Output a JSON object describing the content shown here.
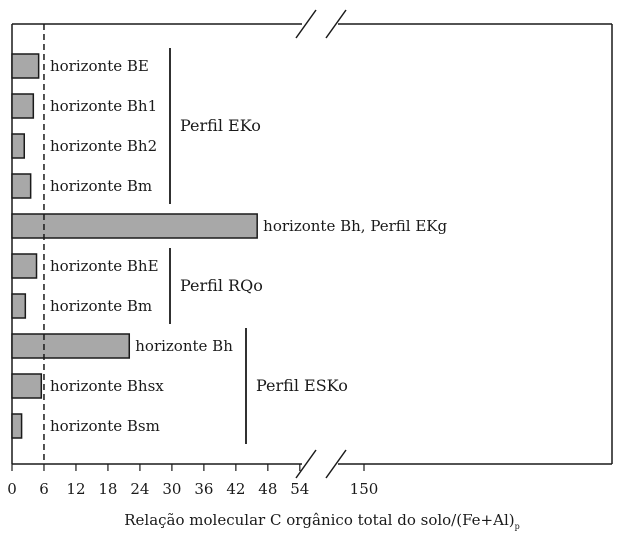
{
  "chart_data": {
    "type": "bar",
    "orientation": "horizontal",
    "xlabel": "Relação molecular C orgânico total do solo/(Fe+Al)",
    "xlabel_subscript": "p",
    "x_ticks": [
      "0",
      "6",
      "12",
      "18",
      "24",
      "30",
      "36",
      "42",
      "48",
      "54",
      "150"
    ],
    "axis_break": "between 48 and 150",
    "reference_line": {
      "x": 6,
      "style": "dashed"
    },
    "bars": [
      {
        "label": "horizonte BE",
        "value": 5
      },
      {
        "label": "horizonte Bh1",
        "value": 4
      },
      {
        "label": "horizonte Bh2",
        "value": 2.3
      },
      {
        "label": "horizonte Bm",
        "value": 3.5
      },
      {
        "label": "horizonte Bh, Perfil EKg",
        "value": 46
      },
      {
        "label": "horizonte BhE",
        "value": 4.6
      },
      {
        "label": "horizonte Bm",
        "value": 2.5
      },
      {
        "label": "horizonte Bh",
        "value": 22
      },
      {
        "label": "horizonte Bhsx",
        "value": 5.5
      },
      {
        "label": "horizonte Bsm",
        "value": 1.8
      }
    ],
    "groups": [
      {
        "label": "Perfil EKo",
        "bars": [
          0,
          3
        ]
      },
      {
        "label": "Perfil RQo",
        "bars": [
          5,
          6
        ]
      },
      {
        "label": "Perfil ESKo",
        "bars": [
          7,
          9
        ]
      }
    ],
    "colors": {
      "bar": "#a8a8a8",
      "outline": "#1a1a1a"
    },
    "grid": false,
    "legend": "none"
  }
}
